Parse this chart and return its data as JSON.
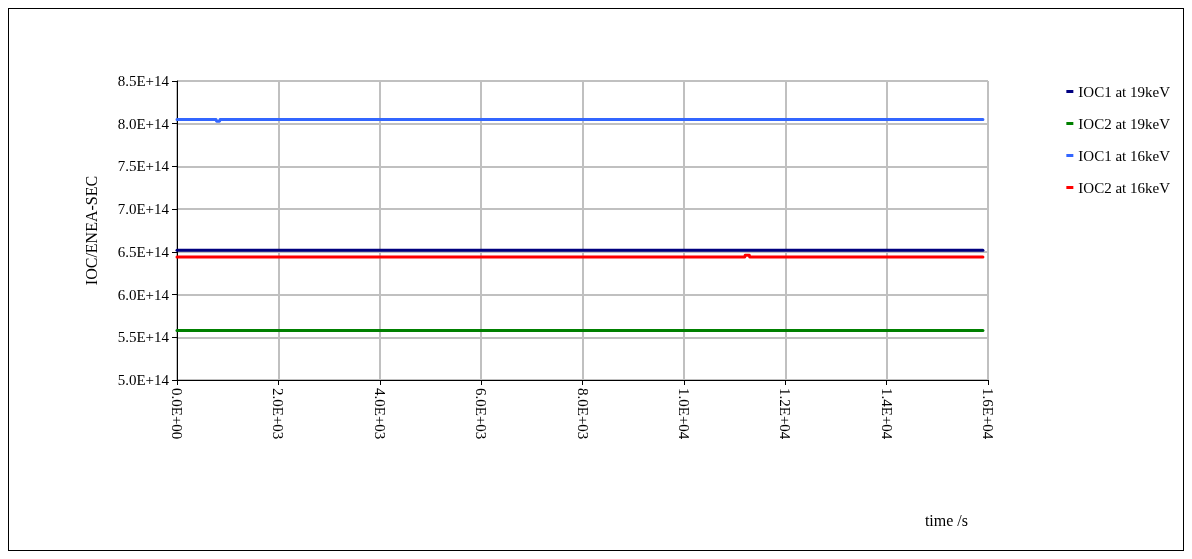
{
  "chart_data": {
    "type": "line",
    "xlabel": "time /s",
    "ylabel": "IOC/ENEA-SEC",
    "x": [
      0,
      15900
    ],
    "series": [
      {
        "name": "IOC1 at 19keV",
        "color": "#000080",
        "values": [
          652000000000000.0,
          652000000000000.0
        ]
      },
      {
        "name": "IOC2 at 19keV",
        "color": "#008000",
        "values": [
          558000000000000.0,
          558000000000000.0
        ]
      },
      {
        "name": "IOC1 at 16keV",
        "color": "#3366ff",
        "x": [
          0,
          770,
          780,
          840,
          850,
          15900
        ],
        "values": [
          805000000000000.0,
          805000000000000.0,
          803000000000000.0,
          803000000000000.0,
          805000000000000.0,
          805000000000000.0
        ]
      },
      {
        "name": "IOC2 at 16keV",
        "color": "#ff0000",
        "x": [
          0,
          11200,
          11210,
          11290,
          11300,
          15900
        ],
        "values": [
          644000000000000.0,
          644000000000000.0,
          646000000000000.0,
          646000000000000.0,
          644000000000000.0,
          644000000000000.0
        ]
      }
    ],
    "xlim": [
      0,
      16000
    ],
    "xticks": [
      {
        "value": 0,
        "label": "0.0E+00"
      },
      {
        "value": 2000,
        "label": "2.0E+03"
      },
      {
        "value": 4000,
        "label": "4.0E+03"
      },
      {
        "value": 6000,
        "label": "6.0E+03"
      },
      {
        "value": 8000,
        "label": "8.0E+03"
      },
      {
        "value": 10000,
        "label": "1.0E+04"
      },
      {
        "value": 12000,
        "label": "1.2E+04"
      },
      {
        "value": 14000,
        "label": "1.4E+04"
      },
      {
        "value": 16000,
        "label": "1.6E+04"
      }
    ],
    "ylim": [
      500000000000000.0,
      850000000000000.0
    ],
    "yticks": [
      {
        "value": 500000000000000.0,
        "label": "5.0E+14"
      },
      {
        "value": 550000000000000.0,
        "label": "5.5E+14"
      },
      {
        "value": 600000000000000.0,
        "label": "6.0E+14"
      },
      {
        "value": 650000000000000.0,
        "label": "6.5E+14"
      },
      {
        "value": 700000000000000.0,
        "label": "7.0E+14"
      },
      {
        "value": 750000000000000.0,
        "label": "7.5E+14"
      },
      {
        "value": 800000000000000.0,
        "label": "8.0E+14"
      },
      {
        "value": 850000000000000.0,
        "label": "8.5E+14"
      }
    ],
    "grid": true,
    "legend": "right",
    "marker": "none",
    "line_style": "solid"
  }
}
